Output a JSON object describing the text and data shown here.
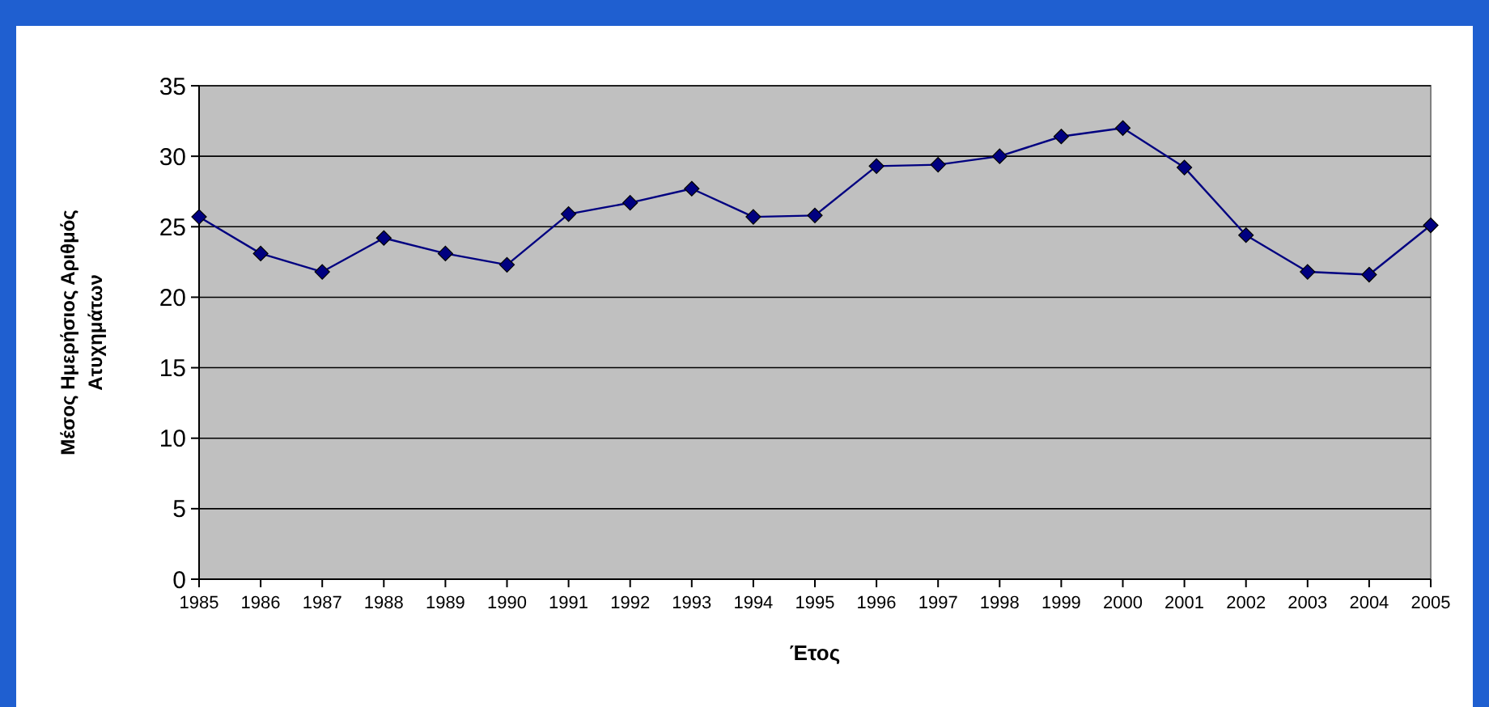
{
  "chart_data": {
    "type": "line",
    "xlabel": "Έτος",
    "ylabel": "Μέσος Ημερήσιος Αριθμός Ατυχημάτων",
    "categories": [
      "1985",
      "1986",
      "1987",
      "1988",
      "1989",
      "1990",
      "1991",
      "1992",
      "1993",
      "1994",
      "1995",
      "1996",
      "1997",
      "1998",
      "1999",
      "2000",
      "2001",
      "2002",
      "2003",
      "2004",
      "2005"
    ],
    "series": [
      {
        "color": "#000080",
        "values": [
          25.7,
          23.1,
          21.8,
          24.2,
          23.1,
          22.3,
          25.9,
          26.7,
          27.7,
          25.7,
          25.8,
          29.3,
          29.4,
          30.0,
          31.4,
          32.0,
          29.2,
          24.4,
          21.8,
          21.6,
          25.1
        ]
      }
    ],
    "ylim": [
      0,
      35
    ],
    "yticks": [
      0,
      5,
      10,
      15,
      20,
      25,
      30,
      35
    ],
    "grid": "y",
    "marker": "diamond",
    "line_style": "solid"
  }
}
